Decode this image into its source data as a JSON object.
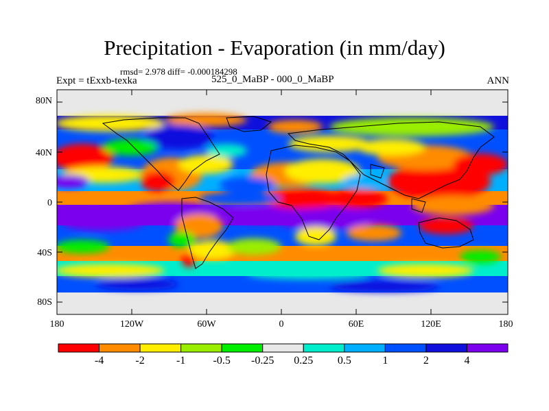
{
  "title": "Precipitation - Evaporation (in mm/day)",
  "stats": "rmsd= 2.978 diff= -0.000184298",
  "experiment": "Expt = tExxb-texka",
  "comparison": "525_0_MaBP - 000_0_MaBP",
  "season": "ANN",
  "lat_labels": [
    "80N",
    "40N",
    "0",
    "40S",
    "80S"
  ],
  "lon_labels": [
    "180",
    "120W",
    "60W",
    "0",
    "60E",
    "120E",
    "180"
  ],
  "colorbar": {
    "colors": [
      "#ff0000",
      "#ff8c00",
      "#ffee00",
      "#9aee00",
      "#00ee00",
      "#e8e8e8",
      "#00eecc",
      "#00b0ff",
      "#0050ff",
      "#1010dd",
      "#7a00ee"
    ],
    "labels": [
      "-4",
      "-2",
      "-1",
      "-0.5",
      "-0.25",
      "0.25",
      "0.5",
      "1",
      "2",
      "4"
    ]
  }
}
